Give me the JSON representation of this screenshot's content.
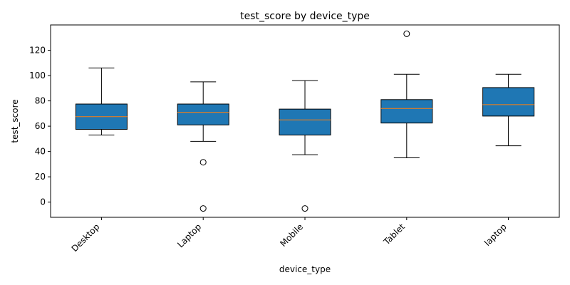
{
  "chart_data": {
    "type": "box",
    "title": "test_score by device_type",
    "xlabel": "device_type",
    "ylabel": "test_score",
    "ylim": [
      -12,
      140
    ],
    "yticks": [
      0,
      20,
      40,
      60,
      80,
      100,
      120
    ],
    "categories": [
      "Desktop",
      "Laptop",
      "Mobile",
      "Tablet",
      "laptop"
    ],
    "boxes": [
      {
        "category": "Desktop",
        "whisker_low": 53,
        "q1": 57.5,
        "median": 67.5,
        "q3": 77.5,
        "whisker_high": 106,
        "outliers": []
      },
      {
        "category": "Laptop",
        "whisker_low": 48,
        "q1": 61,
        "median": 71,
        "q3": 77.5,
        "whisker_high": 95,
        "outliers": [
          31.5,
          -5
        ]
      },
      {
        "category": "Mobile",
        "whisker_low": 37.5,
        "q1": 53,
        "median": 65,
        "q3": 73.5,
        "whisker_high": 96,
        "outliers": [
          -5
        ]
      },
      {
        "category": "Tablet",
        "whisker_low": 35,
        "q1": 62.5,
        "median": 74,
        "q3": 81,
        "whisker_high": 101,
        "outliers": [
          133
        ]
      },
      {
        "category": "laptop",
        "whisker_low": 44.5,
        "q1": 68,
        "median": 77,
        "q3": 90.5,
        "whisker_high": 101,
        "outliers": []
      }
    ],
    "colors": {
      "box_fill": "#1f77b4",
      "median": "#ff7f0e",
      "line": "#000000"
    },
    "grid": false,
    "legend": "none"
  }
}
